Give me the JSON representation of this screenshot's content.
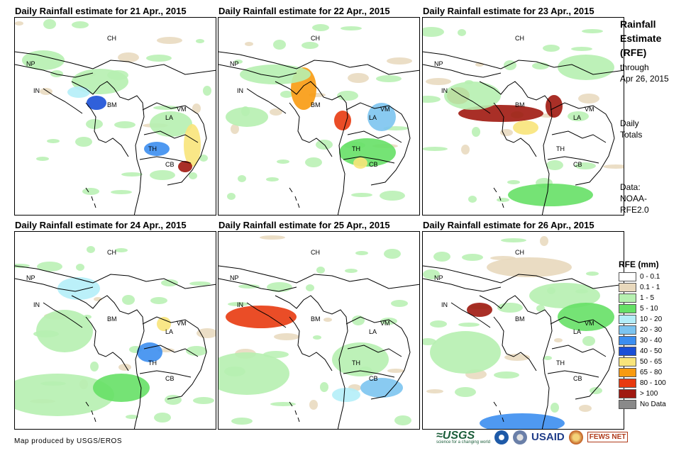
{
  "panels": [
    {
      "title": "Daily Rainfall estimate for 21 Apr., 2015"
    },
    {
      "title": "Daily Rainfall estimate for 22 Apr., 2015"
    },
    {
      "title": "Daily Rainfall estimate for 23 Apr., 2015"
    },
    {
      "title": "Daily Rainfall estimate for 24 Apr., 2015"
    },
    {
      "title": "Daily Rainfall estimate for 25 Apr., 2015"
    },
    {
      "title": "Daily Rainfall estimate for 26 Apr., 2015"
    }
  ],
  "country_labels": {
    "ch": "CH",
    "np": "NP",
    "in": "IN",
    "bm": "BM",
    "la": "LA",
    "vm": "VM",
    "th": "TH",
    "cb": "CB"
  },
  "side": {
    "title_l1": "Rainfall",
    "title_l2": "Estimate",
    "title_l3": "(RFE)",
    "through_l1": "through",
    "through_l2": "Apr 26, 2015",
    "daily_l1": "Daily",
    "daily_l2": "Totals",
    "data_l1": "Data:",
    "data_l2": "NOAA-",
    "data_l3": "RFE2.0"
  },
  "legend": {
    "title": "RFE (mm)",
    "items": [
      {
        "label": "0 - 0.1",
        "color": "#ffffff"
      },
      {
        "label": "0.1 - 1",
        "color": "#e8d8bc"
      },
      {
        "label": "1 - 5",
        "color": "#b6f0b0"
      },
      {
        "label": "5 - 10",
        "color": "#66e066"
      },
      {
        "label": "10 - 20",
        "color": "#b4eef8"
      },
      {
        "label": "20 - 30",
        "color": "#7cc4f0"
      },
      {
        "label": "30 - 40",
        "color": "#3c8ef0"
      },
      {
        "label": "40 - 50",
        "color": "#1a4fd6"
      },
      {
        "label": "50 - 65",
        "color": "#f8e47a"
      },
      {
        "label": "65 - 80",
        "color": "#f89a10"
      },
      {
        "label": "80 - 100",
        "color": "#e83a10"
      },
      {
        "label": "> 100",
        "color": "#a01810"
      },
      {
        "label": "No Data",
        "color": "#8a8a8a"
      }
    ]
  },
  "credit": "Map produced by USGS/EROS",
  "logos": {
    "usgs": "≈USGS",
    "usgs_sub": "science for a changing world",
    "usaid": "USAID",
    "fews": "FEWS NET"
  }
}
